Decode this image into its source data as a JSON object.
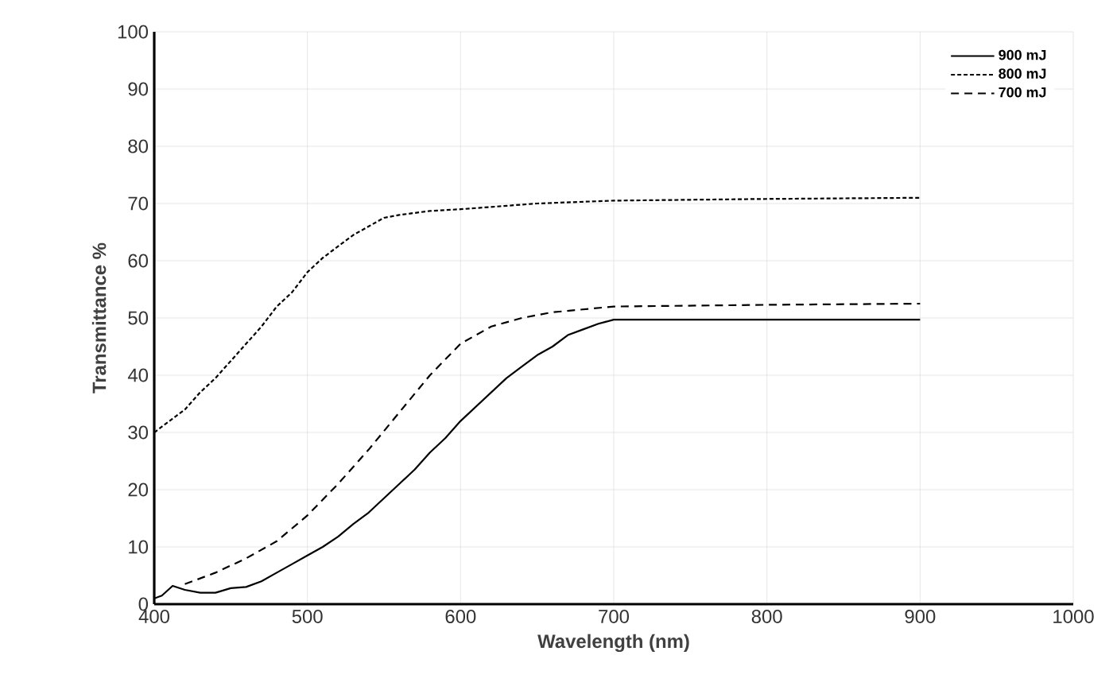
{
  "chart_data": {
    "type": "line",
    "xlabel": "Wavelength (nm)",
    "ylabel": "Transmittance  %",
    "xlim": [
      400,
      1000
    ],
    "ylim": [
      0,
      100
    ],
    "xticks": [
      400,
      500,
      600,
      700,
      800,
      900,
      1000
    ],
    "yticks": [
      0,
      10,
      20,
      30,
      40,
      50,
      60,
      70,
      80,
      90,
      100
    ],
    "grid": true,
    "legend": "top right",
    "marker": "none",
    "series": [
      {
        "name": "900 mJ",
        "color": "#000000",
        "line_style": "solid",
        "x": [
          400,
          405,
          412,
          420,
          430,
          440,
          450,
          460,
          470,
          480,
          490,
          500,
          510,
          520,
          530,
          540,
          550,
          560,
          570,
          580,
          590,
          600,
          610,
          620,
          630,
          640,
          650,
          660,
          670,
          680,
          690,
          700,
          800,
          900
        ],
        "values": [
          1,
          1.5,
          3.2,
          2.5,
          2,
          2,
          2.8,
          3,
          4,
          5.5,
          7,
          8.5,
          10,
          11.8,
          14,
          16,
          18.5,
          21,
          23.5,
          26.5,
          29,
          32,
          34.5,
          37,
          39.5,
          41.5,
          43.5,
          45,
          47,
          48,
          49,
          49.7,
          49.7,
          49.7
        ]
      },
      {
        "name": "800 mJ",
        "color": "#000000",
        "line_style": "dotted",
        "x": [
          400,
          410,
          420,
          430,
          440,
          450,
          460,
          470,
          480,
          490,
          500,
          510,
          520,
          530,
          540,
          550,
          560,
          580,
          600,
          650,
          700,
          800,
          900
        ],
        "values": [
          30,
          32,
          34,
          37,
          39.5,
          42.5,
          45.5,
          48.5,
          52,
          54.5,
          58,
          60.5,
          62.5,
          64.5,
          66,
          67.5,
          68,
          68.7,
          69,
          70,
          70.5,
          70.8,
          71
        ]
      },
      {
        "name": "700 mJ",
        "color": "#000000",
        "line_style": "dashed",
        "x": [
          420,
          440,
          460,
          480,
          500,
          520,
          540,
          560,
          580,
          600,
          620,
          640,
          660,
          680,
          700,
          800,
          900
        ],
        "values": [
          3.5,
          5.5,
          8,
          11,
          15.5,
          21,
          27,
          33.5,
          40,
          45.5,
          48.5,
          50,
          51,
          51.5,
          52,
          52.3,
          52.5
        ]
      }
    ]
  }
}
